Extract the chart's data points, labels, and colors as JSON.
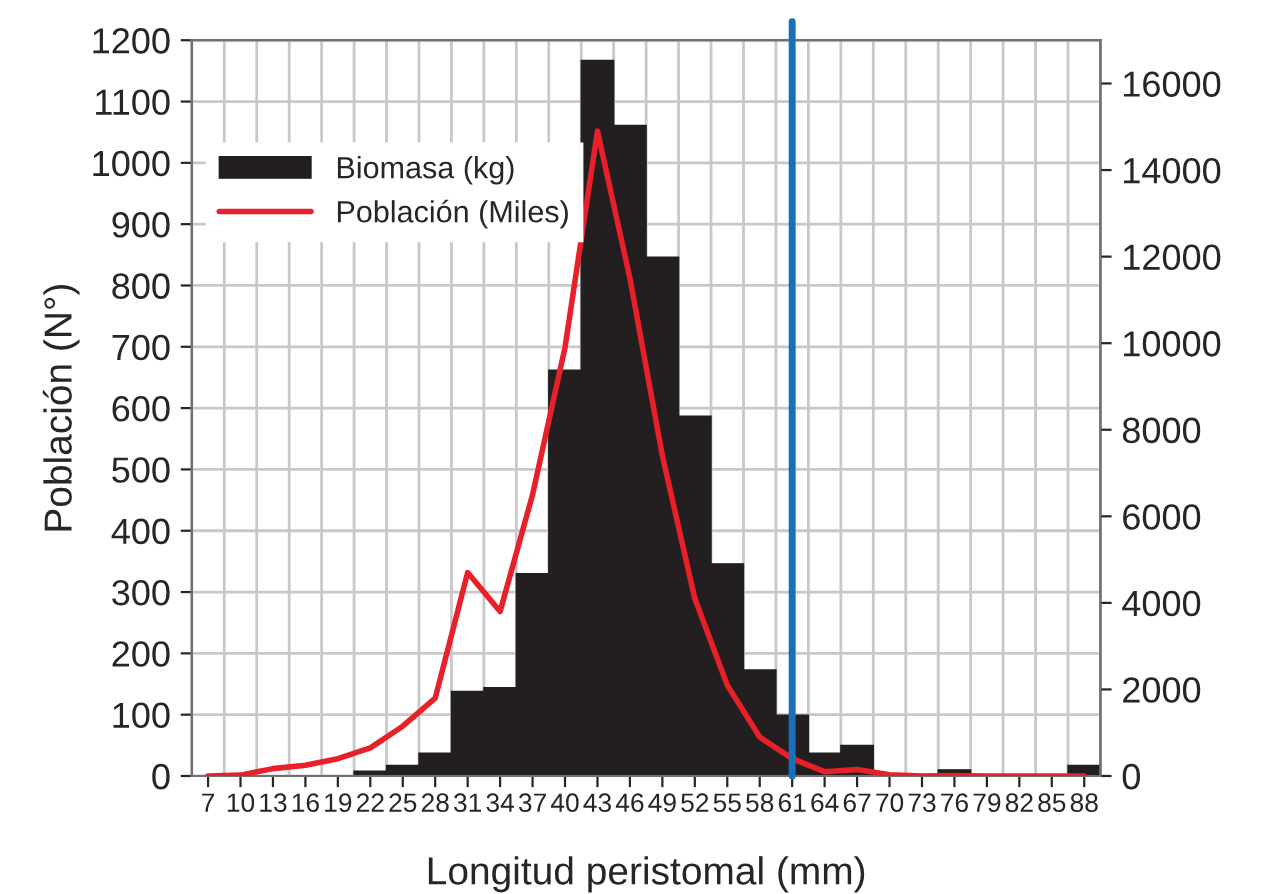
{
  "chart_data": {
    "type": "bar",
    "xlabel": "Longitud peristomal (mm)",
    "ylabel": "Población (N°)",
    "x": [
      7,
      10,
      13,
      16,
      19,
      22,
      25,
      28,
      31,
      34,
      37,
      40,
      43,
      46,
      49,
      52,
      55,
      58,
      61,
      64,
      67,
      70,
      73,
      76,
      79,
      82,
      85,
      88
    ],
    "xlim": [
      5.5,
      89.5
    ],
    "xticks": [
      7,
      10,
      13,
      16,
      19,
      22,
      25,
      28,
      31,
      34,
      37,
      40,
      43,
      46,
      49,
      52,
      55,
      58,
      61,
      64,
      67,
      70,
      73,
      76,
      79,
      82,
      85,
      88
    ],
    "ylim": [
      0,
      1200
    ],
    "yticks": [
      0,
      100,
      200,
      300,
      400,
      500,
      600,
      700,
      800,
      900,
      1000,
      1100,
      1200
    ],
    "y2lim": [
      0,
      17000
    ],
    "y2ticks": [
      0,
      2000,
      4000,
      6000,
      8000,
      10000,
      12000,
      14000,
      16000
    ],
    "grid": true,
    "legend": "top left",
    "series": [
      {
        "name": "Biomasa (kg)",
        "color": "#231f20",
        "values": [
          0,
          0,
          null,
          null,
          null,
          8,
          17,
          37,
          138,
          144,
          330,
          662,
          1167,
          1061,
          846,
          587,
          346,
          173,
          99,
          37,
          50,
          null,
          0,
          10,
          0,
          0,
          0,
          17
        ]
      },
      {
        "name": "Población (Miles)",
        "type": "line",
        "axis": "y2",
        "color": "#e8202a",
        "values": [
          0,
          20,
          170,
          250,
          400,
          650,
          1150,
          1800,
          4700,
          3800,
          6500,
          9900,
          14900,
          11500,
          7400,
          4100,
          2100,
          900,
          400,
          100,
          150,
          30,
          0,
          10,
          0,
          0,
          0,
          0
        ]
      }
    ],
    "ref_lines": [
      {
        "axis": "x",
        "value": 61,
        "color": "#1a6fba",
        "line_style": "solid"
      }
    ]
  }
}
